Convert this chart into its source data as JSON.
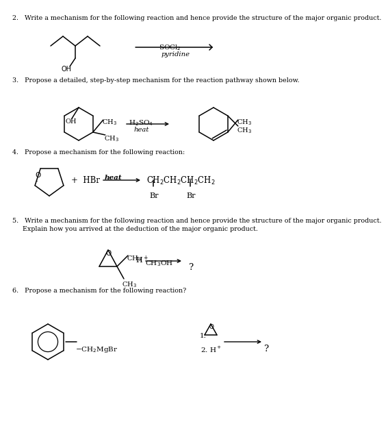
{
  "bg_color": "#ffffff",
  "q2_text": "2.   Write a mechanism for the following reaction and hence provide the structure of the major organic product.",
  "q3_text": "3.   Propose a detailed, step-by-step mechanism for the reaction pathway shown below.",
  "q4_text": "4.   Propose a mechanism for the following reaction:",
  "q5_text1": "5.   Write a mechanism for the following reaction and hence provide the structure of the major organic product.",
  "q5_text2": "     Explain how you arrived at the deduction of the major organic product.",
  "q6_text": "6.   Propose a mechanism for the following reaction?"
}
